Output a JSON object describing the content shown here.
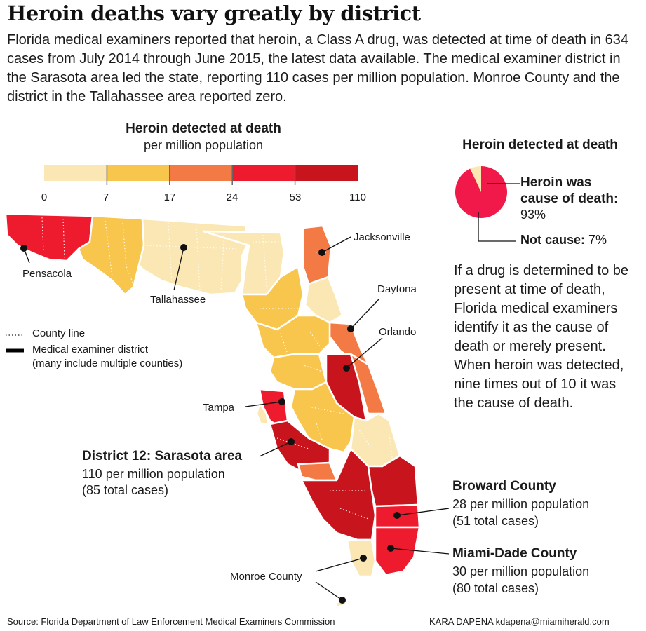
{
  "headline": "Heroin deaths vary greatly by district",
  "intro": "Florida medical examiners reported that heroin, a Class A drug, was detected at time of death in 634 cases from July 2014 through June 2015, the latest data available. The medical examiner district in the Sarasota area led the state, reporting 110 cases per million population. Monroe County and the district in the Tallahassee area reported zero.",
  "legend": {
    "title": "Heroin detected at death",
    "subtitle": "per million population",
    "ticks": [
      "0",
      "7",
      "17",
      "24",
      "53",
      "110"
    ],
    "colors": [
      "#fbe7b4",
      "#f8c54d",
      "#f47a45",
      "#ee1b2e",
      "#c8141c"
    ]
  },
  "map": {
    "cities": {
      "pensacola": "Pensacola",
      "tallahassee": "Tallahassee",
      "jacksonville": "Jacksonville",
      "daytona": "Daytona",
      "orlando": "Orlando",
      "tampa": "Tampa",
      "monroe": "Monroe County"
    },
    "key": {
      "county_line": "County line",
      "district_line_1": "Medical examiner district",
      "district_line_2": "(many include multiple counties)"
    }
  },
  "callouts": {
    "sarasota": {
      "title": "District 12: Sarasota area",
      "line1": "110 per million population",
      "line2": "(85 total cases)"
    },
    "broward": {
      "title": "Broward County",
      "line1": "28 per million population",
      "line2": "(51 total cases)"
    },
    "miami": {
      "title": "Miami-Dade County",
      "line1": "30 per million population",
      "line2": "(80 total cases)"
    }
  },
  "sidebar": {
    "title": "Heroin detected at death",
    "pie": {
      "cause_label_1": "Heroin was",
      "cause_label_2": "cause of death:",
      "cause_value": "93%",
      "not_label": "Not cause:",
      "not_value": "7%",
      "cause_fraction": 0.93,
      "cause_color": "#f0194a",
      "not_color": "#fbe7b4"
    },
    "text": "If a drug is determined to be present at time of death, Florida medical examiners identify it as the cause of death or merely present. When heroin was detected, nine times out of 10 it was the cause of death."
  },
  "source": "Source: Florida Department of Law Enforcement Medical Examiners Commission",
  "credit": "KARA DAPENA kdapena@miamiherald.com"
}
